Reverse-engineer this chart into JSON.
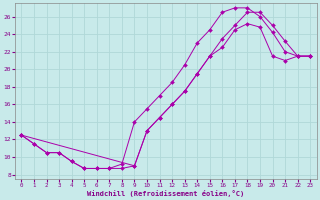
{
  "xlabel": "Windchill (Refroidissement éolien,°C)",
  "background_color": "#c8eaea",
  "grid_color": "#b0d8d8",
  "line_color": "#aa00aa",
  "xlim": [
    -0.5,
    23.5
  ],
  "ylim": [
    7.5,
    27.5
  ],
  "xticks": [
    0,
    1,
    2,
    3,
    4,
    5,
    6,
    7,
    8,
    9,
    10,
    11,
    12,
    13,
    14,
    15,
    16,
    17,
    18,
    19,
    20,
    21,
    22,
    23
  ],
  "yticks": [
    8,
    10,
    12,
    14,
    16,
    18,
    20,
    22,
    24,
    26
  ],
  "line1_x": [
    0,
    1,
    2,
    3,
    4,
    5,
    6,
    7,
    8,
    9,
    10,
    11,
    12,
    13,
    14,
    15,
    16,
    17,
    18,
    19,
    20,
    21,
    22,
    23
  ],
  "line1_y": [
    12.5,
    11.5,
    10.5,
    10.5,
    9.5,
    8.7,
    8.7,
    8.7,
    8.7,
    9.0,
    13.0,
    14.5,
    16.0,
    17.5,
    19.5,
    21.5,
    23.5,
    25.0,
    26.5,
    26.5,
    25.0,
    23.2,
    21.5,
    21.5
  ],
  "line2_x": [
    0,
    1,
    2,
    3,
    4,
    5,
    6,
    7,
    8,
    9,
    10,
    11,
    12,
    13,
    14,
    15,
    16,
    17,
    18,
    19,
    20,
    21,
    22,
    23
  ],
  "line2_y": [
    12.5,
    11.5,
    10.5,
    10.5,
    9.5,
    8.7,
    8.7,
    8.7,
    9.2,
    14.0,
    15.5,
    17.0,
    18.5,
    20.5,
    23.0,
    24.5,
    26.5,
    27.0,
    27.0,
    26.0,
    24.2,
    22.0,
    21.5,
    21.5
  ],
  "line3_x": [
    0,
    9,
    10,
    11,
    12,
    13,
    14,
    15,
    16,
    17,
    18,
    19,
    20,
    21,
    22,
    23
  ],
  "line3_y": [
    12.5,
    9.0,
    13.0,
    14.5,
    16.0,
    17.5,
    19.5,
    21.5,
    22.5,
    24.5,
    25.2,
    24.8,
    21.5,
    21.0,
    21.5,
    21.5
  ]
}
